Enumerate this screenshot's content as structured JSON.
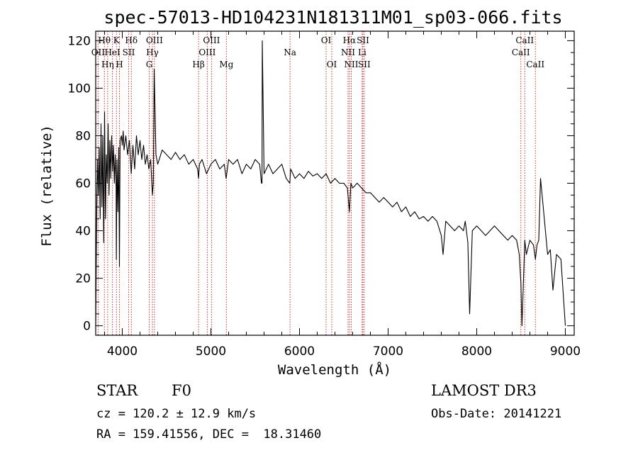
{
  "chart_data": {
    "type": "line",
    "title": "spec-57013-HD104231N181311M01_sp03-066.fits",
    "xlabel": "Wavelength (Å)",
    "ylabel": "Flux (relative)",
    "xlim": [
      3700,
      9100
    ],
    "ylim": [
      -4,
      124
    ],
    "xticks": [
      4000,
      5000,
      6000,
      7000,
      8000,
      9000
    ],
    "yticks": [
      0,
      20,
      40,
      60,
      80,
      100,
      120
    ],
    "series": [
      {
        "name": "flux",
        "x": [
          3700,
          3710,
          3720,
          3730,
          3740,
          3750,
          3760,
          3770,
          3780,
          3790,
          3800,
          3810,
          3820,
          3830,
          3840,
          3850,
          3860,
          3870,
          3880,
          3890,
          3900,
          3910,
          3920,
          3930,
          3933,
          3940,
          3950,
          3960,
          3968,
          3975,
          3990,
          4000,
          4010,
          4020,
          4040,
          4060,
          4080,
          4101,
          4120,
          4140,
          4160,
          4180,
          4200,
          4220,
          4240,
          4260,
          4280,
          4300,
          4320,
          4340,
          4350,
          4360,
          4380,
          4400,
          4450,
          4500,
          4550,
          4600,
          4650,
          4700,
          4750,
          4800,
          4850,
          4861,
          4870,
          4900,
          4950,
          5000,
          5050,
          5100,
          5150,
          5172,
          5200,
          5250,
          5300,
          5350,
          5400,
          5450,
          5500,
          5550,
          5570,
          5577,
          5580,
          5600,
          5650,
          5700,
          5750,
          5800,
          5850,
          5890,
          5900,
          5950,
          6000,
          6050,
          6100,
          6150,
          6200,
          6250,
          6300,
          6350,
          6400,
          6450,
          6500,
          6540,
          6563,
          6580,
          6600,
          6650,
          6700,
          6750,
          6800,
          6850,
          6900,
          6950,
          7000,
          7050,
          7100,
          7150,
          7200,
          7250,
          7300,
          7350,
          7400,
          7450,
          7500,
          7550,
          7600,
          7620,
          7650,
          7700,
          7750,
          7800,
          7850,
          7870,
          7900,
          7920,
          7950,
          8000,
          8050,
          8100,
          8150,
          8200,
          8250,
          8300,
          8350,
          8400,
          8450,
          8480,
          8498,
          8510,
          8542,
          8560,
          8600,
          8640,
          8662,
          8680,
          8700,
          8720,
          8750,
          8780,
          8800,
          8830,
          8860,
          8900,
          8950,
          9000
        ],
        "values": [
          0,
          45,
          70,
          55,
          75,
          45,
          85,
          50,
          80,
          35,
          90,
          45,
          72,
          60,
          85,
          55,
          78,
          62,
          80,
          65,
          76,
          60,
          72,
          58,
          28,
          70,
          48,
          75,
          25,
          78,
          80,
          76,
          82,
          74,
          80,
          72,
          78,
          64,
          76,
          66,
          80,
          72,
          78,
          70,
          76,
          68,
          72,
          66,
          70,
          55,
          60,
          108,
          72,
          68,
          74,
          72,
          70,
          73,
          70,
          72,
          68,
          70,
          66,
          62,
          68,
          70,
          64,
          68,
          70,
          66,
          68,
          62,
          70,
          68,
          70,
          64,
          68,
          66,
          70,
          68,
          60,
          60,
          120,
          64,
          68,
          64,
          66,
          68,
          62,
          60,
          66,
          62,
          64,
          62,
          65,
          63,
          64,
          62,
          64,
          60,
          62,
          60,
          60,
          58,
          48,
          60,
          58,
          60,
          58,
          56,
          56,
          54,
          52,
          54,
          52,
          50,
          52,
          48,
          50,
          46,
          48,
          45,
          46,
          44,
          46,
          44,
          38,
          30,
          44,
          42,
          40,
          42,
          40,
          44,
          35,
          5,
          40,
          42,
          40,
          38,
          40,
          42,
          40,
          38,
          36,
          38,
          36,
          30,
          18,
          0,
          36,
          30,
          36,
          34,
          28,
          34,
          36,
          62,
          50,
          38,
          30,
          32,
          15,
          30,
          28,
          0
        ],
        "color": "#000000"
      }
    ],
    "annotations": {
      "lines": [
        {
          "wavelength": 3727,
          "label": "OII",
          "row": 1
        },
        {
          "wavelength": 3798,
          "label": "Hθ",
          "row": 0
        },
        {
          "wavelength": 3835,
          "label": "Hη",
          "row": 2
        },
        {
          "wavelength": 3889,
          "label": "HeI",
          "row": 1
        },
        {
          "wavelength": 3934,
          "label": "K",
          "row": 0
        },
        {
          "wavelength": 3968,
          "label": "H",
          "row": 2
        },
        {
          "wavelength": 4072,
          "label": "SII",
          "row": 1
        },
        {
          "wavelength": 4102,
          "label": "Hδ",
          "row": 0
        },
        {
          "wavelength": 4304,
          "label": "G",
          "row": 2
        },
        {
          "wavelength": 4340,
          "label": "Hγ",
          "row": 1
        },
        {
          "wavelength": 4363,
          "label": "OIII",
          "row": 0
        },
        {
          "wavelength": 4861,
          "label": "Hβ",
          "row": 2
        },
        {
          "wavelength": 4959,
          "label": "OIII",
          "row": 1
        },
        {
          "wavelength": 5007,
          "label": "OIII",
          "row": 0
        },
        {
          "wavelength": 5175,
          "label": "Mg",
          "row": 2
        },
        {
          "wavelength": 5893,
          "label": "Na",
          "row": 1
        },
        {
          "wavelength": 6300,
          "label": "OI",
          "row": 0
        },
        {
          "wavelength": 6364,
          "label": "OI",
          "row": 2
        },
        {
          "wavelength": 6548,
          "label": "NII",
          "row": 1
        },
        {
          "wavelength": 6563,
          "label": "Hα",
          "row": 0
        },
        {
          "wavelength": 6584,
          "label": "NII",
          "row": 2
        },
        {
          "wavelength": 6707,
          "label": "Li",
          "row": 1
        },
        {
          "wavelength": 6716,
          "label": "SII",
          "row": 0
        },
        {
          "wavelength": 6731,
          "label": "SII",
          "row": 2
        },
        {
          "wavelength": 8498,
          "label": "CaII",
          "row": 1
        },
        {
          "wavelength": 8542,
          "label": "CaII",
          "row": 0
        },
        {
          "wavelength": 8662,
          "label": "CaII",
          "row": 2
        }
      ],
      "line_color": "#cc3333"
    }
  },
  "info": {
    "object_class": "STAR",
    "subclass": "F0",
    "survey": "LAMOST DR3",
    "redshift": "cz = 120.2 ± 12.9 km/s",
    "obs_date": "Obs-Date: 20141221",
    "coords": "RA = 159.41556, DEC =  18.31460"
  }
}
